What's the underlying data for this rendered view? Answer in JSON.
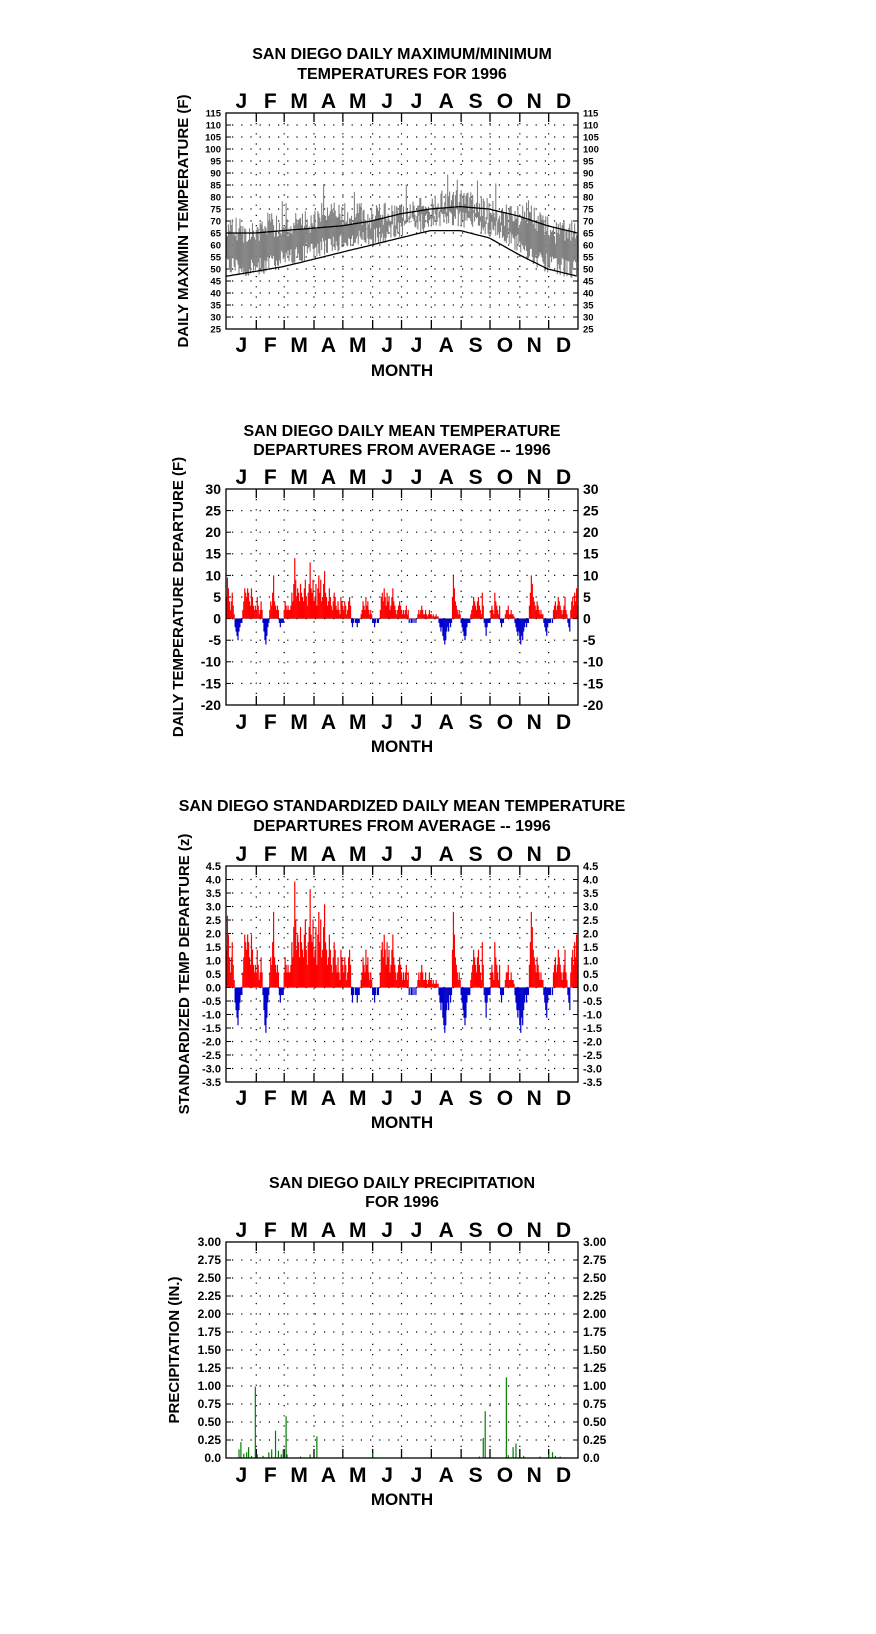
{
  "months": [
    "J",
    "F",
    "M",
    "A",
    "M",
    "J",
    "J",
    "A",
    "S",
    "O",
    "N",
    "D"
  ],
  "colors": {
    "maxmin_obs": "#808080",
    "normal_line": "#000000",
    "positive": "#ff0000",
    "negative": "#0000cc",
    "precip": "#008000",
    "grid": "#000000"
  },
  "chart_data": [
    {
      "type": "line",
      "title_lines": [
        "SAN DIEGO DAILY MAXIMUM/MINIMUM",
        "TEMPERATURES FOR 1996"
      ],
      "xlabel": "MONTH",
      "ylabel": "DAILY MAXIMIN TEMPERATURE (F)",
      "ylim": [
        25,
        115
      ],
      "yticks": [
        "25",
        "30",
        "35",
        "40",
        "45",
        "50",
        "55",
        "60",
        "65",
        "70",
        "75",
        "80",
        "85",
        "90",
        "95",
        "100",
        "105",
        "110",
        "115"
      ],
      "grid": true,
      "series": [
        {
          "name": "",
          "style": "observed max",
          "days": [
            1,
            15,
            30,
            45,
            60,
            75,
            90,
            105,
            120,
            135,
            150,
            165,
            180,
            195,
            210,
            225,
            240,
            255,
            270,
            285,
            300,
            315,
            330,
            345,
            366
          ],
          "values": [
            68,
            66,
            64,
            70,
            66,
            69,
            70,
            74,
            72,
            74,
            71,
            73,
            72,
            74,
            76,
            78,
            79,
            77,
            74,
            73,
            71,
            74,
            68,
            65,
            66
          ]
        },
        {
          "name": "",
          "style": "observed min",
          "days": [
            1,
            15,
            30,
            45,
            60,
            75,
            90,
            105,
            120,
            135,
            150,
            165,
            180,
            195,
            210,
            225,
            240,
            255,
            270,
            285,
            300,
            315,
            330,
            345,
            366
          ],
          "values": [
            52,
            50,
            51,
            52,
            54,
            56,
            58,
            60,
            61,
            62,
            63,
            64,
            66,
            68,
            70,
            71,
            72,
            70,
            68,
            66,
            62,
            57,
            53,
            51,
            50
          ]
        },
        {
          "name": "",
          "style": "normal max",
          "days": [
            1,
            31,
            60,
            91,
            121,
            152,
            182,
            213,
            244,
            274,
            305,
            335,
            366
          ],
          "values": [
            65,
            65,
            66,
            67,
            68,
            70,
            73,
            75,
            76,
            75,
            72,
            68,
            65
          ]
        },
        {
          "name": "",
          "style": "normal min",
          "days": [
            1,
            31,
            60,
            91,
            121,
            152,
            182,
            213,
            244,
            274,
            305,
            335,
            366
          ],
          "values": [
            47,
            49,
            51,
            54,
            57,
            60,
            63,
            66,
            66,
            63,
            56,
            50,
            47
          ]
        }
      ]
    },
    {
      "type": "bar",
      "title_lines": [
        "SAN DIEGO DAILY MEAN TEMPERATURE",
        "DEPARTURES FROM AVERAGE -- 1996"
      ],
      "xlabel": "MONTH",
      "ylabel": "DAILY TEMPERATURE DEPARTURE (F)",
      "ylim": [
        -20,
        30
      ],
      "yticks": [
        "-20",
        "-15",
        "-10",
        "-5",
        "0",
        "5",
        "10",
        "15",
        "20",
        "25",
        "30"
      ],
      "grid": true,
      "segments": [
        {
          "days": [
            1,
            4
          ],
          "values": [
            5,
            9.5,
            7,
            4
          ]
        },
        {
          "days": [
            5,
            9
          ],
          "values": [
            2,
            4,
            6,
            3,
            1
          ]
        },
        {
          "days": [
            10,
            17
          ],
          "values": [
            -2,
            -3,
            -4,
            -5,
            -3,
            -2,
            -1,
            -1
          ]
        },
        {
          "days": [
            18,
            30
          ],
          "values": [
            2,
            4,
            7,
            6,
            5,
            7,
            6,
            4,
            3,
            7,
            5,
            3,
            2
          ]
        },
        {
          "days": [
            31,
            38
          ],
          "values": [
            3,
            2,
            5,
            3,
            1,
            2,
            4,
            2
          ]
        },
        {
          "days": [
            39,
            45
          ],
          "values": [
            -1,
            -3,
            -5,
            -6,
            -4,
            -2,
            -1
          ]
        },
        {
          "days": [
            46,
            55
          ],
          "values": [
            2,
            4,
            3,
            6,
            10,
            4,
            3,
            2,
            3,
            2
          ]
        },
        {
          "days": [
            56,
            60
          ],
          "values": [
            -1,
            -2,
            -1,
            -1,
            -1
          ]
        },
        {
          "days": [
            61,
            66
          ],
          "values": [
            2,
            4,
            3,
            2,
            3,
            2
          ]
        },
        {
          "days": [
            67,
            95
          ],
          "values": [
            2,
            3,
            6,
            4,
            8,
            14,
            9,
            5,
            7,
            6,
            4,
            8,
            6,
            5,
            4,
            7,
            9,
            5,
            3,
            6,
            8,
            13,
            7,
            6,
            9,
            4,
            5,
            8,
            3
          ]
        },
        {
          "days": [
            96,
            119
          ],
          "values": [
            7,
            10,
            6,
            9,
            4,
            5,
            8,
            11,
            6,
            5,
            3,
            4,
            7,
            5,
            3,
            2,
            4,
            6,
            5,
            3,
            2,
            4,
            2,
            1
          ]
        },
        {
          "days": [
            120,
            130
          ],
          "values": [
            5,
            4,
            3,
            2,
            4,
            3,
            1,
            2,
            4,
            5,
            3
          ]
        },
        {
          "days": [
            131,
            140
          ],
          "values": [
            -1,
            -2,
            -1,
            0,
            -1,
            -1,
            -2,
            -1,
            -1,
            0
          ]
        },
        {
          "days": [
            141,
            152
          ],
          "values": [
            1,
            2,
            4,
            3,
            2,
            5,
            3,
            4,
            2,
            1,
            2,
            1
          ]
        },
        {
          "days": [
            153,
            160
          ],
          "values": [
            -1,
            -1,
            -2,
            -1,
            0,
            -1,
            -1,
            0
          ]
        },
        {
          "days": [
            161,
            190
          ],
          "values": [
            2,
            5,
            6,
            4,
            7,
            5,
            3,
            6,
            4,
            5,
            2,
            3,
            5,
            7,
            4,
            3,
            2,
            1,
            2,
            3,
            4,
            3,
            2,
            1,
            2,
            1,
            2,
            3,
            1,
            2
          ]
        },
        {
          "days": [
            191,
            199
          ],
          "values": [
            -1,
            0,
            -1,
            -1,
            0,
            -1,
            0,
            -1,
            0
          ]
        },
        {
          "days": [
            200,
            221
          ],
          "values": [
            1,
            2,
            1,
            2,
            3,
            2,
            1,
            1,
            2,
            1,
            0.5,
            1,
            2,
            1,
            1,
            0.5,
            1,
            0.5,
            0.5,
            1,
            0.5,
            0.5
          ]
        },
        {
          "days": [
            222,
            235
          ],
          "values": [
            -1,
            -2,
            -3,
            -2,
            -4,
            -5,
            -6,
            -5,
            -3,
            -2,
            -3,
            -1,
            -2,
            -1
          ]
        },
        {
          "days": [
            236,
            244
          ],
          "values": [
            5,
            10,
            7,
            4,
            3,
            2,
            1,
            2,
            1
          ]
        },
        {
          "days": [
            245,
            254
          ],
          "values": [
            -1,
            -2,
            -3,
            -4,
            -5,
            -4,
            -2,
            -1,
            -1,
            -1
          ]
        },
        {
          "days": [
            255,
            268
          ],
          "values": [
            1,
            2,
            3,
            5,
            4,
            3,
            2,
            4,
            5,
            3,
            2,
            1,
            6,
            3
          ]
        },
        {
          "days": [
            269,
            275
          ],
          "values": [
            -1,
            -2,
            -4,
            -2,
            -1,
            -1,
            -1
          ]
        },
        {
          "days": [
            276,
            285
          ],
          "values": [
            2,
            3,
            2,
            1,
            6,
            4,
            3,
            2,
            1,
            3
          ]
        },
        {
          "days": [
            286,
            290
          ],
          "values": [
            -1,
            -2,
            -1,
            -1,
            0
          ]
        },
        {
          "days": [
            291,
            300
          ],
          "values": [
            1,
            2,
            2,
            3,
            1,
            1,
            2,
            1,
            1,
            0.5
          ]
        },
        {
          "days": [
            301,
            315
          ],
          "values": [
            -1,
            -2,
            -3,
            -4,
            -3,
            -5,
            -6,
            -4,
            -5,
            -3,
            -2,
            -1,
            -2,
            -1,
            -1
          ]
        },
        {
          "days": [
            316,
            330
          ],
          "values": [
            3,
            6,
            10,
            8,
            5,
            4,
            3,
            2,
            4,
            3,
            2,
            1,
            2,
            1,
            1
          ]
        },
        {
          "days": [
            331,
            340
          ],
          "values": [
            -1,
            -2,
            -3,
            -4,
            -2,
            -1,
            -1,
            -1,
            0,
            -1
          ]
        },
        {
          "days": [
            341,
            355
          ],
          "values": [
            2,
            3,
            4,
            2,
            3,
            5,
            4,
            3,
            2,
            1,
            2,
            3,
            5,
            2,
            1
          ]
        },
        {
          "days": [
            356,
            366
          ],
          "values": [
            -1,
            -2,
            -3,
            2,
            4,
            5,
            3,
            6,
            4,
            7,
            3
          ]
        }
      ]
    },
    {
      "type": "bar",
      "title_lines": [
        "SAN DIEGO STANDARDIZED DAILY MEAN TEMPERATURE",
        "DEPARTURES FROM AVERAGE -- 1996"
      ],
      "xlabel": "MONTH",
      "ylabel": "STANDARDIZED TEMP DEPARTURE (z)",
      "ylim": [
        -3.5,
        4.5
      ],
      "yticks": [
        "-3.5",
        "-3.0",
        "-2.5",
        "-2.0",
        "-1.5",
        "-1.0",
        "-0.5",
        "0.0",
        "0.5",
        "1.0",
        "1.5",
        "2.0",
        "2.5",
        "3.0",
        "3.5",
        "4.0",
        "4.5"
      ],
      "grid": true,
      "scale_of_panel2": 0.28
    },
    {
      "type": "bar",
      "title_lines": [
        "SAN DIEGO DAILY PRECIPITATION",
        "FOR 1996"
      ],
      "xlabel": "MONTH",
      "ylabel": "PRECIPITATION (IN.)",
      "ylim": [
        0,
        3
      ],
      "yticks": [
        "0.0",
        "0.25",
        "0.50",
        "0.75",
        "1.00",
        "1.25",
        "1.50",
        "1.75",
        "2.00",
        "2.25",
        "2.50",
        "2.75",
        "3.00"
      ],
      "grid": true,
      "days": [
        14,
        16,
        19,
        22,
        24,
        27,
        31,
        33,
        39,
        45,
        48,
        52,
        55,
        58,
        60,
        63,
        64,
        78,
        88,
        95,
        153,
        264,
        268,
        270,
        292,
        294,
        299,
        302,
        310,
        327,
        336,
        340,
        343,
        348
      ],
      "values": [
        0.12,
        0.22,
        0.06,
        0.08,
        0.15,
        0.03,
        0.99,
        0.05,
        0.03,
        0.08,
        0.12,
        0.38,
        0.1,
        0.05,
        0.12,
        0.58,
        0.05,
        0.02,
        0.05,
        0.3,
        0.07,
        0.02,
        0.28,
        0.65,
        1.12,
        0.04,
        0.15,
        0.2,
        0.03,
        0.02,
        0.05,
        0.08,
        0.03,
        0.02
      ]
    }
  ]
}
